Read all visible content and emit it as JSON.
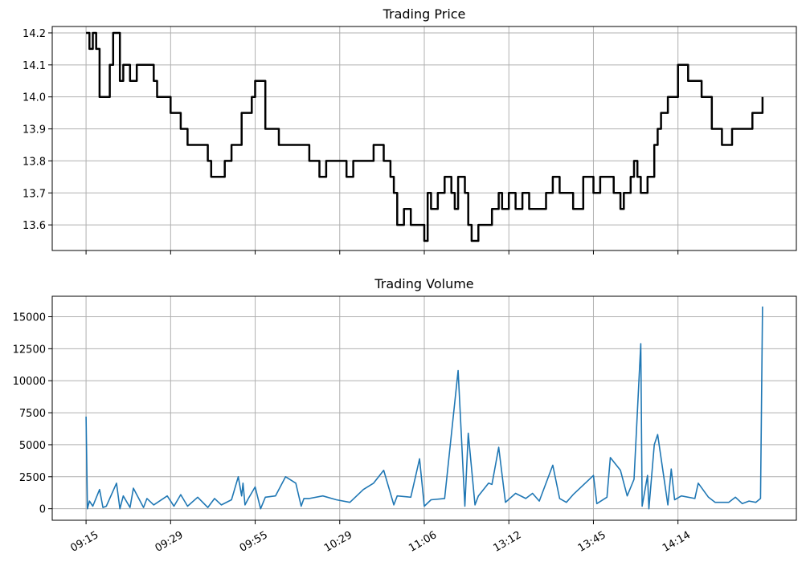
{
  "chart_data": [
    {
      "type": "line",
      "title": "Trading Price",
      "xlabel": "",
      "ylabel": "",
      "ylim": [
        13.52,
        14.22
      ],
      "xlim": [
        -0.05,
        1.05
      ],
      "yticks": [
        13.6,
        13.7,
        13.8,
        13.9,
        14.0,
        14.1,
        14.2
      ],
      "ytick_labels": [
        "13.6",
        "13.7",
        "13.8",
        "13.9",
        "14.0",
        "14.1",
        "14.2"
      ],
      "grid": true,
      "line_color": "#000000",
      "x_axis_note": "x axis is shared with the volume panel; its tick labels are printed only below the volume panel",
      "series": [
        {
          "name": "",
          "x": [
            0.0,
            0.005,
            0.01,
            0.015,
            0.02,
            0.035,
            0.04,
            0.05,
            0.055,
            0.06,
            0.065,
            0.075,
            0.09,
            0.1,
            0.105,
            0.11,
            0.12,
            0.125,
            0.135,
            0.14,
            0.145,
            0.15,
            0.165,
            0.18,
            0.185,
            0.195,
            0.2,
            0.205,
            0.215,
            0.225,
            0.23,
            0.245,
            0.25,
            0.265,
            0.285,
            0.305,
            0.315,
            0.325,
            0.33,
            0.34,
            0.345,
            0.355,
            0.365,
            0.38,
            0.385,
            0.395,
            0.405,
            0.42,
            0.425,
            0.44,
            0.45,
            0.455,
            0.46,
            0.47,
            0.48,
            0.49,
            0.5,
            0.505,
            0.51,
            0.52,
            0.53,
            0.54,
            0.545,
            0.55,
            0.56,
            0.565,
            0.57,
            0.58,
            0.6,
            0.61,
            0.615,
            0.625,
            0.635,
            0.645,
            0.655,
            0.665,
            0.68,
            0.69,
            0.7,
            0.71,
            0.72,
            0.735,
            0.745,
            0.75,
            0.76,
            0.77,
            0.78,
            0.79,
            0.795,
            0.805,
            0.81,
            0.815,
            0.82,
            0.83,
            0.84,
            0.845,
            0.85,
            0.86,
            0.875,
            0.89,
            0.9,
            0.905,
            0.91,
            0.925,
            0.94,
            0.955,
            0.97,
            0.985,
            0.997,
            1.0
          ],
          "values": [
            14.2,
            14.15,
            14.2,
            14.15,
            14.0,
            14.1,
            14.2,
            14.05,
            14.1,
            14.1,
            14.05,
            14.1,
            14.1,
            14.05,
            14.0,
            14.0,
            14.0,
            13.95,
            13.95,
            13.9,
            13.9,
            13.85,
            13.85,
            13.8,
            13.75,
            13.75,
            13.75,
            13.8,
            13.85,
            13.85,
            13.95,
            14.0,
            14.05,
            13.9,
            13.85,
            13.85,
            13.85,
            13.85,
            13.8,
            13.8,
            13.75,
            13.8,
            13.8,
            13.8,
            13.75,
            13.8,
            13.8,
            13.8,
            13.85,
            13.8,
            13.75,
            13.7,
            13.6,
            13.65,
            13.6,
            13.6,
            13.55,
            13.7,
            13.65,
            13.7,
            13.75,
            13.7,
            13.65,
            13.75,
            13.7,
            13.6,
            13.55,
            13.6,
            13.65,
            13.7,
            13.65,
            13.7,
            13.65,
            13.7,
            13.65,
            13.65,
            13.7,
            13.75,
            13.7,
            13.7,
            13.65,
            13.75,
            13.75,
            13.7,
            13.75,
            13.75,
            13.7,
            13.65,
            13.7,
            13.75,
            13.8,
            13.75,
            13.7,
            13.75,
            13.85,
            13.9,
            13.95,
            14.0,
            14.1,
            14.05,
            14.05,
            14.05,
            14.0,
            13.9,
            13.85,
            13.9,
            13.9,
            13.95,
            13.95,
            14.0
          ]
        }
      ]
    },
    {
      "type": "line",
      "title": "Trading Volume",
      "xlabel": "",
      "ylabel": "",
      "ylim": [
        -900,
        16600
      ],
      "xlim": [
        -0.05,
        1.05
      ],
      "yticks": [
        0,
        2500,
        5000,
        7500,
        10000,
        12500,
        15000
      ],
      "ytick_labels": [
        "0",
        "2500",
        "5000",
        "7500",
        "10000",
        "12500",
        "15000"
      ],
      "xticks": [
        0.0,
        0.125,
        0.25,
        0.375,
        0.5,
        0.625,
        0.75,
        0.875
      ],
      "xtick_labels": [
        "09:15",
        "09:29",
        "09:55",
        "10:29",
        "11:06",
        "13:12",
        "13:45",
        "14:14"
      ],
      "grid": true,
      "line_color": "#1f77b4",
      "series": [
        {
          "name": "",
          "x": [
            0.0,
            0.002,
            0.005,
            0.01,
            0.02,
            0.025,
            0.03,
            0.045,
            0.05,
            0.055,
            0.065,
            0.07,
            0.085,
            0.09,
            0.1,
            0.12,
            0.13,
            0.14,
            0.15,
            0.165,
            0.18,
            0.19,
            0.2,
            0.215,
            0.225,
            0.23,
            0.232,
            0.235,
            0.24,
            0.25,
            0.258,
            0.265,
            0.28,
            0.295,
            0.31,
            0.318,
            0.322,
            0.33,
            0.35,
            0.37,
            0.39,
            0.41,
            0.425,
            0.44,
            0.455,
            0.46,
            0.48,
            0.493,
            0.5,
            0.51,
            0.53,
            0.55,
            0.56,
            0.565,
            0.575,
            0.58,
            0.595,
            0.6,
            0.61,
            0.62,
            0.635,
            0.65,
            0.66,
            0.67,
            0.69,
            0.7,
            0.71,
            0.72,
            0.75,
            0.755,
            0.77,
            0.775,
            0.79,
            0.8,
            0.81,
            0.82,
            0.822,
            0.83,
            0.832,
            0.84,
            0.845,
            0.86,
            0.865,
            0.87,
            0.88,
            0.9,
            0.905,
            0.92,
            0.93,
            0.95,
            0.96,
            0.97,
            0.98,
            0.99,
            0.997,
            1.0
          ],
          "values": [
            7200,
            0,
            600,
            200,
            1500,
            100,
            200,
            2000,
            0,
            1000,
            100,
            1600,
            100,
            800,
            300,
            1000,
            200,
            1100,
            200,
            900,
            100,
            800,
            300,
            700,
            2500,
            1000,
            2000,
            300,
            800,
            1700,
            0,
            900,
            1000,
            2500,
            2000,
            200,
            800,
            800,
            1000,
            700,
            500,
            1500,
            2000,
            3000,
            300,
            1000,
            900,
            3900,
            200,
            700,
            800,
            10800,
            200,
            5900,
            300,
            1000,
            2000,
            1900,
            4800,
            500,
            1200,
            800,
            1200,
            600,
            3400,
            800,
            500,
            1100,
            2600,
            400,
            900,
            4000,
            3000,
            1000,
            2300,
            12900,
            200,
            2600,
            0,
            5000,
            5800,
            300,
            3100,
            700,
            1000,
            800,
            2000,
            900,
            500,
            500,
            900,
            400,
            600,
            500,
            800,
            15800
          ]
        }
      ]
    }
  ]
}
